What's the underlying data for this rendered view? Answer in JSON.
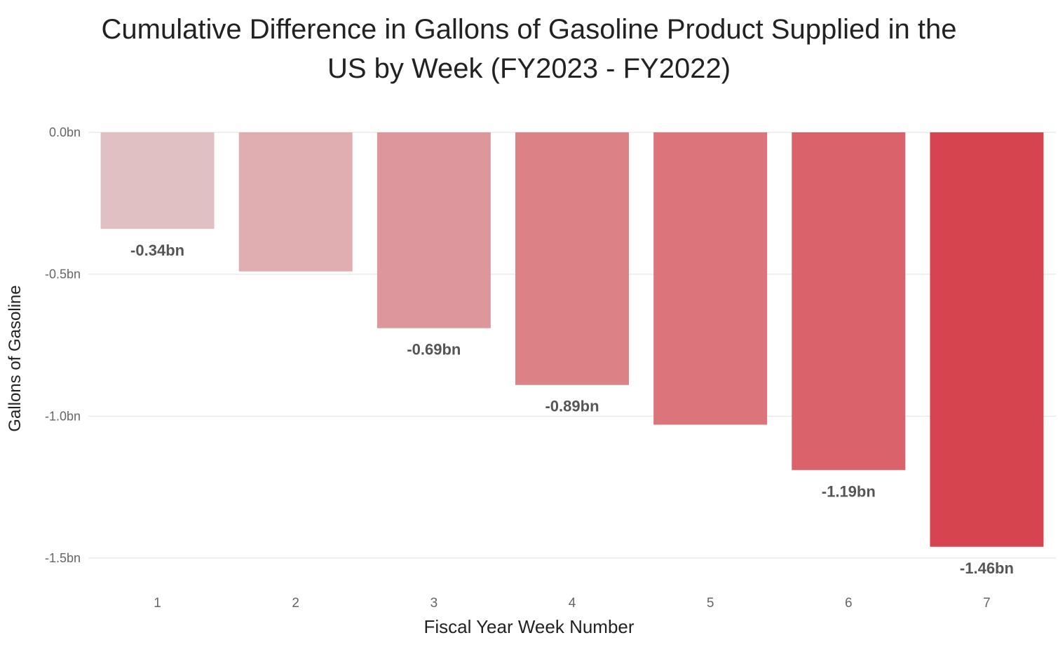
{
  "chart_data": {
    "type": "bar",
    "title": "Cumulative Difference in Gallons of Gasoline Product Supplied in the US by Week (FY2023 - FY2022)",
    "title_lines": [
      "Cumulative Difference in Gallons of Gasoline Product Supplied in the",
      "US by Week (FY2023 - FY2022)"
    ],
    "xlabel": "Fiscal Year Week Number",
    "ylabel": "Gallons of Gasoline",
    "categories": [
      "1",
      "2",
      "3",
      "4",
      "5",
      "6",
      "7"
    ],
    "values": [
      -0.34,
      -0.49,
      -0.69,
      -0.89,
      -1.03,
      -1.19,
      -1.46
    ],
    "data_labels": [
      "-0.34bn",
      "",
      "-0.69bn",
      "-0.89bn",
      "",
      "-1.19bn",
      "-1.46bn"
    ],
    "ylim": [
      -1.5,
      0
    ],
    "yticks": [
      0,
      -0.5,
      -1.0,
      -1.5
    ],
    "ytick_labels": [
      "0.0bn",
      "-0.5bn",
      "-1.0bn",
      "-1.5bn"
    ],
    "grid": true,
    "legend": "none",
    "colors": [
      "#e0c0c2",
      "#e0aeb1",
      "#dd979c",
      "#dc8287",
      "#dc747b",
      "#d9626b",
      "#d5444f"
    ]
  }
}
